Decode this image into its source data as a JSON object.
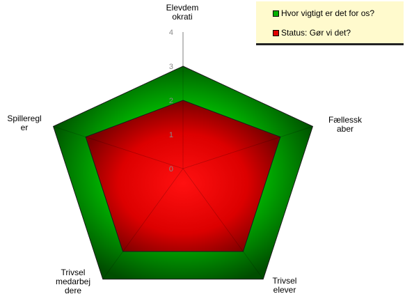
{
  "chart_data": {
    "type": "radar",
    "categories": [
      "Elevdem\nokrati",
      "Fællessk\naber",
      "Trivsel\nelever",
      "Trivsel\nmedarbej\ndere",
      "Spilleregl\ner"
    ],
    "ticks": [
      "0",
      "1",
      "2",
      "3",
      "4"
    ],
    "rlim": [
      0,
      4
    ],
    "legend_position": "top-right",
    "series": [
      {
        "name": "Hvor vigtigt er det for os?",
        "color": "#00b000",
        "values": [
          3,
          4,
          4,
          4,
          4
        ]
      },
      {
        "name": "Status: Gør vi det?",
        "color": "#e00000",
        "values": [
          2,
          3,
          3,
          3,
          3
        ]
      }
    ]
  },
  "legend_bg": "#fffacd"
}
